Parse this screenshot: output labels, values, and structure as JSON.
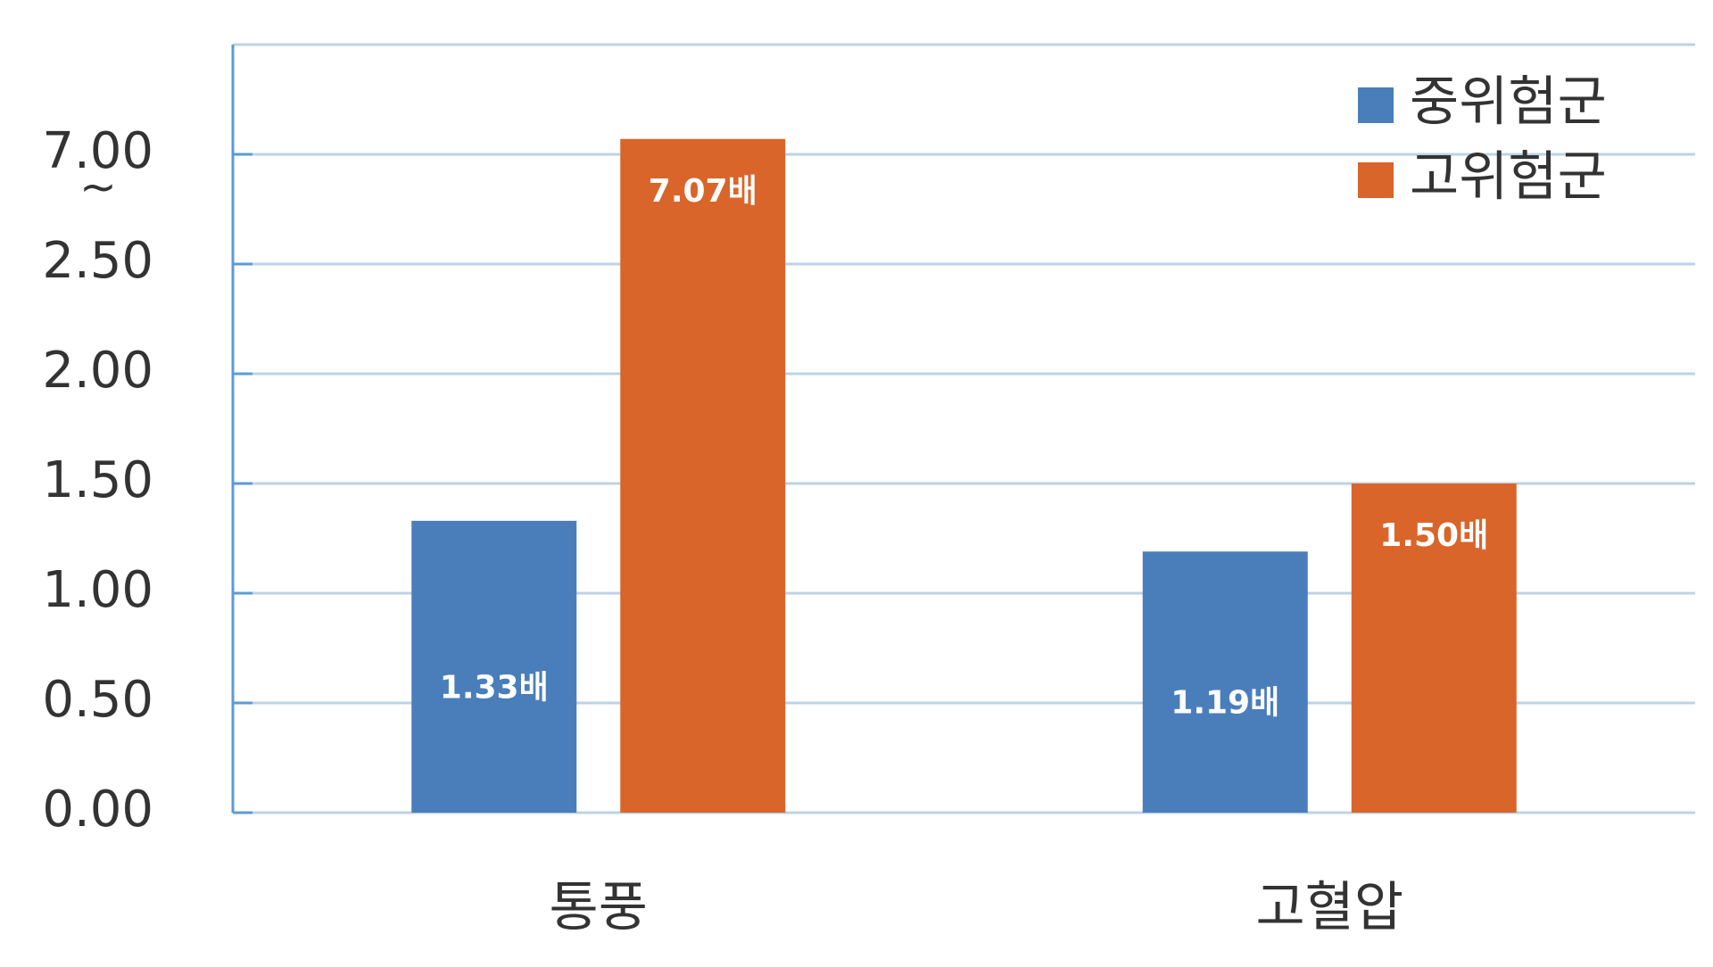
{
  "chart_data": {
    "type": "bar",
    "categories": [
      "통풍",
      "고혈압"
    ],
    "series": [
      {
        "name": "중위험군",
        "color": "#4a7ebb",
        "values": [
          1.33,
          1.19
        ],
        "value_labels": [
          "1.33배",
          "1.19배"
        ]
      },
      {
        "name": "고위험군",
        "color": "#d9652a",
        "values": [
          7.07,
          1.5
        ],
        "value_labels": [
          "7.07배",
          "1.50배"
        ]
      }
    ],
    "ylim": [
      0,
      7.5
    ],
    "axis_break": [
      2.5,
      7.0
    ],
    "axis_break_label": "~",
    "yticks": [
      {
        "value": 0,
        "label": "0.00"
      },
      {
        "value": 0.5,
        "label": "0.50"
      },
      {
        "value": 1,
        "label": "1.00"
      },
      {
        "value": 1.5,
        "label": "1.50"
      },
      {
        "value": 2,
        "label": "2.00"
      },
      {
        "value": 2.5,
        "label": "2.50"
      },
      {
        "value": 7,
        "label": "7.00"
      }
    ],
    "grid": true,
    "legend": "top-right"
  }
}
